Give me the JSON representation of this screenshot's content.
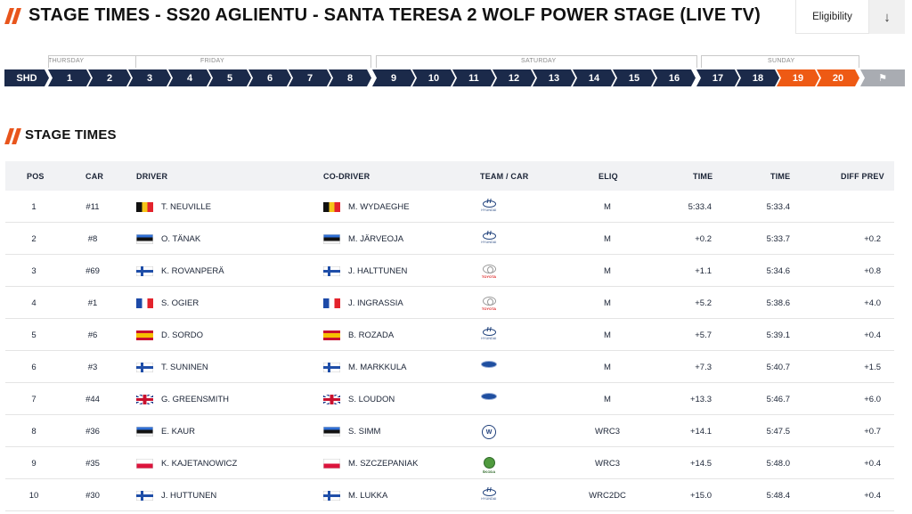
{
  "header": {
    "title": "STAGE TIMES - SS20 AGLIENTU - SANTA TERESA 2 WOLF POWER STAGE (LIVE TV)",
    "eligibility_label": "Eligibility",
    "download_icon": "arrow-down-icon"
  },
  "stage_nav": {
    "days": [
      {
        "label": "THURSDAY"
      },
      {
        "label": "FRIDAY"
      },
      {
        "label": "SATURDAY"
      },
      {
        "label": "SUNDAY"
      }
    ],
    "stages": [
      "SHD",
      "1",
      "2",
      "3",
      "4",
      "5",
      "6",
      "7",
      "8",
      "9",
      "10",
      "11",
      "12",
      "13",
      "14",
      "15",
      "16",
      "17",
      "18",
      "19",
      "20"
    ],
    "active_stages": [
      "19",
      "20"
    ],
    "finish_icon": "finish-flag-icon",
    "colors": {
      "stage": "#1b2a4a",
      "active": "#ee5a14",
      "finish": "#a9acb2"
    }
  },
  "section": {
    "title": "STAGE TIMES"
  },
  "table": {
    "columns": {
      "pos": "POS",
      "car": "CAR",
      "driver": "DRIVER",
      "codriver": "CO-DRIVER",
      "team": "TEAM / CAR",
      "eliq": "ELIQ",
      "time": "TIME",
      "time2": "TIME",
      "diff": "DIFF PREV"
    },
    "rows": [
      {
        "pos": "1",
        "car": "#11",
        "driver": "T. NEUVILLE",
        "driver_flag": "be",
        "codriver": "M. WYDAEGHE",
        "codriver_flag": "be",
        "team_logo": "hyundai",
        "eliq": "M",
        "time": "5:33.4",
        "time2": "5:33.4",
        "diff": ""
      },
      {
        "pos": "2",
        "car": "#8",
        "driver": "O. TÄNAK",
        "driver_flag": "ee",
        "codriver": "M. JÄRVEOJA",
        "codriver_flag": "ee",
        "team_logo": "hyundai",
        "eliq": "M",
        "time": "+0.2",
        "time2": "5:33.7",
        "diff": "+0.2"
      },
      {
        "pos": "3",
        "car": "#69",
        "driver": "K. ROVANPERÄ",
        "driver_flag": "fi",
        "codriver": "J. HALTTUNEN",
        "codriver_flag": "fi",
        "team_logo": "toyota",
        "eliq": "M",
        "time": "+1.1",
        "time2": "5:34.6",
        "diff": "+0.8"
      },
      {
        "pos": "4",
        "car": "#1",
        "driver": "S. OGIER",
        "driver_flag": "fr",
        "codriver": "J. INGRASSIA",
        "codriver_flag": "fr",
        "team_logo": "toyota",
        "eliq": "M",
        "time": "+5.2",
        "time2": "5:38.6",
        "diff": "+4.0"
      },
      {
        "pos": "5",
        "car": "#6",
        "driver": "D. SORDO",
        "driver_flag": "es",
        "codriver": "B. ROZADA",
        "codriver_flag": "es",
        "team_logo": "hyundai",
        "eliq": "M",
        "time": "+5.7",
        "time2": "5:39.1",
        "diff": "+0.4"
      },
      {
        "pos": "6",
        "car": "#3",
        "driver": "T. SUNINEN",
        "driver_flag": "fi",
        "codriver": "M. MARKKULA",
        "codriver_flag": "fi",
        "team_logo": "ford",
        "eliq": "M",
        "time": "+7.3",
        "time2": "5:40.7",
        "diff": "+1.5"
      },
      {
        "pos": "7",
        "car": "#44",
        "driver": "G. GREENSMITH",
        "driver_flag": "gb",
        "codriver": "S. LOUDON",
        "codriver_flag": "gb",
        "team_logo": "ford",
        "eliq": "M",
        "time": "+13.3",
        "time2": "5:46.7",
        "diff": "+6.0"
      },
      {
        "pos": "8",
        "car": "#36",
        "driver": "E. KAUR",
        "driver_flag": "ee",
        "codriver": "S. SIMM",
        "codriver_flag": "ee",
        "team_logo": "vw",
        "eliq": "WRC3",
        "time": "+14.1",
        "time2": "5:47.5",
        "diff": "+0.7"
      },
      {
        "pos": "9",
        "car": "#35",
        "driver": "K. KAJETANOWICZ",
        "driver_flag": "pl",
        "codriver": "M. SZCZEPANIAK",
        "codriver_flag": "pl",
        "team_logo": "skoda",
        "eliq": "WRC3",
        "time": "+14.5",
        "time2": "5:48.0",
        "diff": "+0.4"
      },
      {
        "pos": "10",
        "car": "#30",
        "driver": "J. HUTTUNEN",
        "driver_flag": "fi",
        "codriver": "M. LUKKA",
        "codriver_flag": "fi",
        "team_logo": "hyundai",
        "eliq": "WRC2DC",
        "time": "+15.0",
        "time2": "5:48.4",
        "diff": "+0.4"
      }
    ]
  }
}
